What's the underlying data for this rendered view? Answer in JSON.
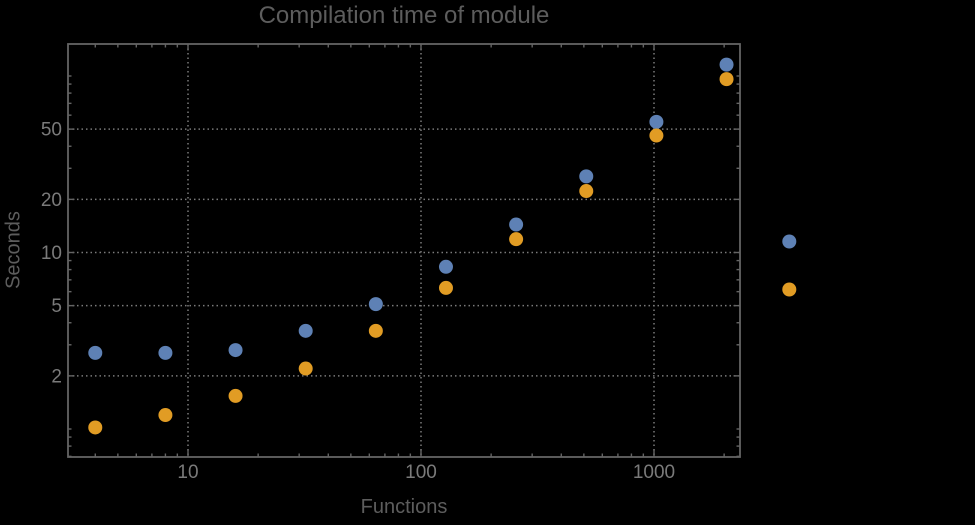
{
  "chart_data": {
    "type": "scatter",
    "title": "Compilation time of module",
    "xlabel": "Functions",
    "ylabel": "Seconds",
    "x_scale": "log",
    "y_scale": "log",
    "x_range": [
      3.05,
      2340
    ],
    "y_range": [
      0.66,
      155
    ],
    "grid": "dotted, at labeled ticks only",
    "x_ticks": [
      10,
      100,
      1000
    ],
    "y_ticks": [
      2,
      5,
      10,
      20,
      50
    ],
    "x": [
      4,
      8,
      16,
      32,
      64,
      128,
      256,
      512,
      1024,
      2048
    ],
    "series": [
      {
        "name": "blue",
        "color": "#5e81b5",
        "values": [
          2.7,
          2.7,
          2.8,
          3.6,
          5.1,
          8.3,
          14.4,
          27,
          55,
          116
        ]
      },
      {
        "name": "orange",
        "color": "#e19c24",
        "values": [
          1.02,
          1.2,
          1.54,
          2.2,
          3.6,
          6.3,
          11.9,
          22.3,
          46,
          96
        ]
      }
    ],
    "legend": {
      "position": "right-of-plot, vertically centered",
      "labels_visible": false,
      "markers": [
        {
          "name": "blue",
          "color": "#5e81b5"
        },
        {
          "name": "orange",
          "color": "#e19c24"
        }
      ]
    },
    "colors": {
      "background": "#000000",
      "frame": "#646464",
      "grid": "#7a7a7a",
      "tick_label": "#7a7a7a",
      "text": "#5d5d5d"
    }
  }
}
